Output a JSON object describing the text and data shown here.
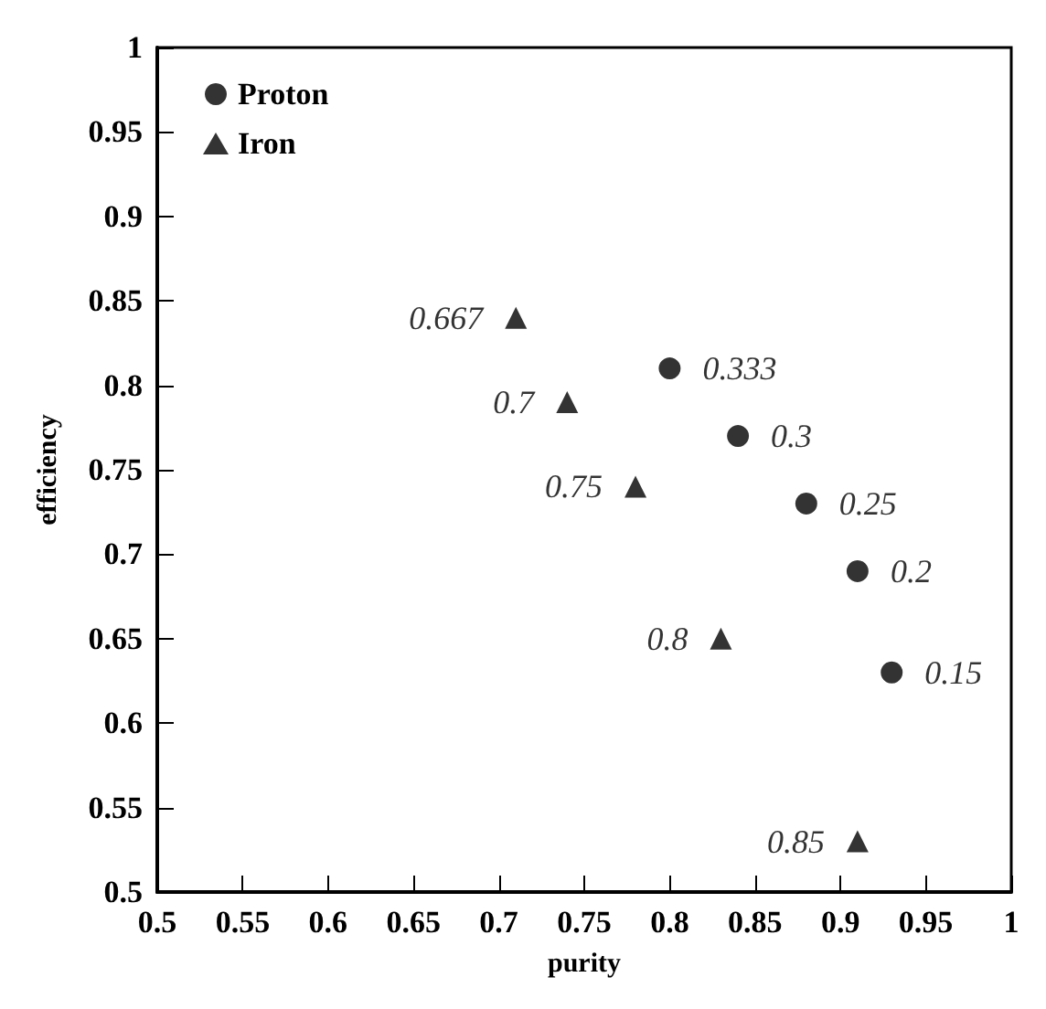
{
  "chart_data": {
    "type": "scatter",
    "xlabel": "purity",
    "ylabel": "efficiency",
    "xlim": [
      0.5,
      1
    ],
    "ylim": [
      0.5,
      1
    ],
    "xticks": [
      0.5,
      0.55,
      0.6,
      0.65,
      0.7,
      0.75,
      0.8,
      0.85,
      0.9,
      0.95,
      1
    ],
    "yticks": [
      0.5,
      0.55,
      0.6,
      0.65,
      0.7,
      0.75,
      0.8,
      0.85,
      0.9,
      0.95,
      1
    ],
    "grid": false,
    "legend": "top left",
    "series": [
      {
        "name": "Proton",
        "color": "#000000",
        "marker": "circle",
        "x": [
          0.8,
          0.84,
          0.88,
          0.91,
          0.93
        ],
        "values": [
          0.81,
          0.77,
          0.73,
          0.69,
          0.63
        ]
      },
      {
        "name": "Iron",
        "color": "#000000",
        "marker": "triangle",
        "x": [
          0.71,
          0.74,
          0.78,
          0.83,
          0.91
        ],
        "values": [
          0.84,
          0.79,
          0.74,
          0.65,
          0.53
        ]
      }
    ],
    "annotations": [
      {
        "text": "0.333",
        "x": 0.8,
        "y": 0.81
      },
      {
        "text": "0.3",
        "x": 0.84,
        "y": 0.77
      },
      {
        "text": "0.25",
        "x": 0.88,
        "y": 0.73
      },
      {
        "text": "0.2",
        "x": 0.91,
        "y": 0.69
      },
      {
        "text": "0.15",
        "x": 0.93,
        "y": 0.63
      },
      {
        "text": "0.667",
        "x": 0.71,
        "y": 0.84
      },
      {
        "text": "0.7",
        "x": 0.74,
        "y": 0.79
      },
      {
        "text": "0.75",
        "x": 0.78,
        "y": 0.74
      },
      {
        "text": "0.8",
        "x": 0.83,
        "y": 0.65
      },
      {
        "text": "0.85",
        "x": 0.91,
        "y": 0.53
      }
    ]
  }
}
